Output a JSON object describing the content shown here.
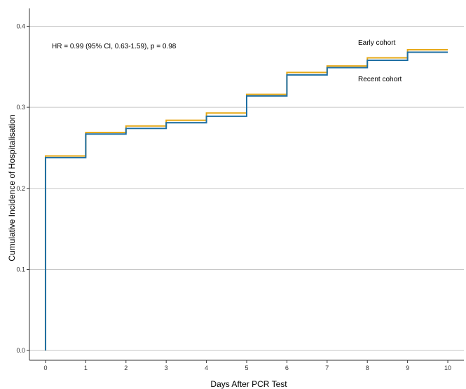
{
  "chart_data": {
    "type": "line",
    "step": true,
    "title": "",
    "xlabel": "Days After PCR Test",
    "ylabel": "Cumulative Incidence of Hospitalisation",
    "xlim": [
      -0.4,
      10.4
    ],
    "ylim": [
      -0.012,
      0.422
    ],
    "x_ticks": [
      0,
      1,
      2,
      3,
      4,
      5,
      6,
      7,
      8,
      9,
      10
    ],
    "x_tick_labels": [
      "0",
      "1",
      "2",
      "3",
      "4",
      "5",
      "6",
      "7",
      "8",
      "9",
      "10"
    ],
    "y_ticks": [
      0.0,
      0.1,
      0.2,
      0.3,
      0.4
    ],
    "y_tick_labels": [
      "0.0",
      "0.1",
      "0.2",
      "0.3",
      "0.4"
    ],
    "grid": {
      "horizontal": true,
      "vertical": false
    },
    "legend": "none",
    "x": [
      0,
      1,
      2,
      3,
      4,
      5,
      6,
      7,
      8,
      9,
      10
    ],
    "series": [
      {
        "name": "Early cohort",
        "color": "#E6A817",
        "values": [
          0.24,
          0.269,
          0.277,
          0.284,
          0.293,
          0.316,
          0.343,
          0.351,
          0.361,
          0.371,
          0.371
        ]
      },
      {
        "name": "Recent cohort",
        "color": "#1F6FA3",
        "values": [
          0.238,
          0.267,
          0.274,
          0.281,
          0.289,
          0.314,
          0.34,
          0.349,
          0.358,
          0.368,
          0.368
        ]
      }
    ],
    "annotations": {
      "hr_text": "HR = 0.99 (95% CI, 0.63-1.59), p = 0.98",
      "early_label": "Early cohort",
      "recent_label": "Recent cohort"
    }
  }
}
